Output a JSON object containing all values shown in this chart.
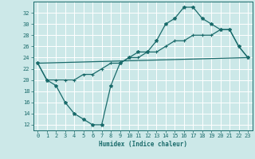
{
  "title": "",
  "xlabel": "Humidex (Indice chaleur)",
  "ylabel": "",
  "bg_color": "#cce8e8",
  "line_color": "#1a6b6b",
  "xlim": [
    -0.5,
    23.5
  ],
  "ylim": [
    11,
    34
  ],
  "yticks": [
    12,
    14,
    16,
    18,
    20,
    22,
    24,
    26,
    28,
    30,
    32
  ],
  "xticks": [
    0,
    1,
    2,
    3,
    4,
    5,
    6,
    7,
    8,
    9,
    10,
    11,
    12,
    13,
    14,
    15,
    16,
    17,
    18,
    19,
    20,
    21,
    22,
    23
  ],
  "line1_x": [
    0,
    1,
    2,
    3,
    4,
    5,
    6,
    7,
    8,
    9,
    10,
    11,
    12,
    13,
    14,
    15,
    16,
    17,
    18,
    19,
    20,
    21,
    22,
    23
  ],
  "line1_y": [
    23,
    20,
    19,
    16,
    14,
    13,
    12,
    12,
    19,
    23,
    24,
    25,
    25,
    27,
    30,
    31,
    33,
    33,
    31,
    30,
    29,
    29,
    26,
    24
  ],
  "line2_x": [
    0,
    1,
    2,
    3,
    4,
    5,
    6,
    7,
    8,
    9,
    10,
    11,
    12,
    13,
    14,
    15,
    16,
    17,
    18,
    19,
    20,
    21,
    22,
    23
  ],
  "line2_y": [
    23,
    20,
    20,
    20,
    20,
    21,
    21,
    22,
    23,
    23,
    24,
    24,
    25,
    25,
    26,
    27,
    27,
    28,
    28,
    28,
    29,
    29,
    26,
    24
  ],
  "line3_x": [
    0,
    23
  ],
  "line3_y": [
    23,
    24
  ]
}
